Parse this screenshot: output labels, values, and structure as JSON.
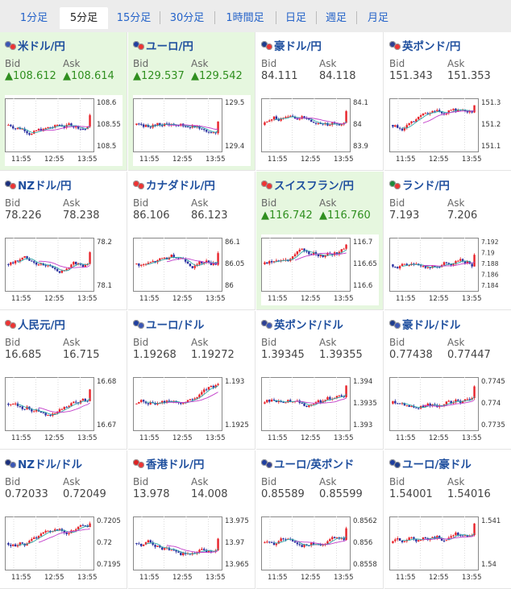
{
  "tabs": [
    "1分足",
    "5分足",
    "15分足",
    "30分足",
    "1時間足",
    "日足",
    "週足",
    "月足"
  ],
  "active_tab": 1,
  "labels": {
    "bid": "Bid",
    "ask": "Ask"
  },
  "colors": {
    "up": "#e8232a",
    "down": "#2a2fa0",
    "ma_short": "#2da8a8",
    "ma_long": "#c23cc9",
    "highlight": "#e6f7df",
    "link": "#1f4f9e"
  },
  "time_labels": [
    "11:55",
    "12:55",
    "13:55"
  ],
  "pairs": [
    {
      "name": "米ドル/円",
      "flag": "us-jp-flag-icon",
      "bid": "▲108.612",
      "ask": "▲108.614",
      "up": true,
      "hl": true,
      "yticks": [
        "108.6",
        "108.55",
        "108.5"
      ]
    },
    {
      "name": "ユーロ/円",
      "flag": "eu-jp-flag-icon",
      "bid": "▲129.537",
      "ask": "▲129.542",
      "up": true,
      "hl": true,
      "yticks": [
        "129.5",
        "129.4"
      ]
    },
    {
      "name": "豪ドル/円",
      "flag": "au-jp-flag-icon",
      "bid": "84.111",
      "ask": "84.118",
      "up": false,
      "hl": false,
      "yticks": [
        "84.1",
        "84",
        "83.9"
      ]
    },
    {
      "name": "英ポンド/円",
      "flag": "gb-jp-flag-icon",
      "bid": "151.343",
      "ask": "151.353",
      "up": false,
      "hl": false,
      "yticks": [
        "151.3",
        "151.2",
        "151.1"
      ]
    },
    {
      "name": "NZドル/円",
      "flag": "nz-jp-flag-icon",
      "bid": "78.226",
      "ask": "78.238",
      "up": false,
      "hl": false,
      "yticks": [
        "78.2",
        "78.1"
      ]
    },
    {
      "name": "カナダドル/円",
      "flag": "ca-jp-flag-icon",
      "bid": "86.106",
      "ask": "86.123",
      "up": false,
      "hl": false,
      "yticks": [
        "86.1",
        "86.05",
        "86"
      ]
    },
    {
      "name": "スイスフラン/円",
      "flag": "ch-jp-flag-icon",
      "bid": "▲116.742",
      "ask": "▲116.760",
      "up": true,
      "hl": true,
      "yticks": [
        "116.7",
        "116.65",
        "116.6"
      ]
    },
    {
      "name": "ランド/円",
      "flag": "za-jp-flag-icon",
      "bid": "7.193",
      "ask": "7.206",
      "up": false,
      "hl": false,
      "yticks": [
        "7.192",
        "7.19",
        "7.188",
        "7.186",
        "7.184"
      ]
    },
    {
      "name": "人民元/円",
      "flag": "cn-jp-flag-icon",
      "bid": "16.685",
      "ask": "16.715",
      "up": false,
      "hl": false,
      "yticks": [
        "16.68",
        "16.67"
      ]
    },
    {
      "name": "ユーロ/ドル",
      "flag": "eu-us-flag-icon",
      "bid": "1.19268",
      "ask": "1.19272",
      "up": false,
      "hl": false,
      "yticks": [
        "1.193",
        "1.1925"
      ]
    },
    {
      "name": "英ポンド/ドル",
      "flag": "gb-us-flag-icon",
      "bid": "1.39345",
      "ask": "1.39355",
      "up": false,
      "hl": false,
      "yticks": [
        "1.394",
        "1.3935",
        "1.393"
      ]
    },
    {
      "name": "豪ドル/ドル",
      "flag": "au-us-flag-icon",
      "bid": "0.77438",
      "ask": "0.77447",
      "up": false,
      "hl": false,
      "yticks": [
        "0.7745",
        "0.774",
        "0.7735"
      ]
    },
    {
      "name": "NZドル/ドル",
      "flag": "nz-us-flag-icon",
      "bid": "0.72033",
      "ask": "0.72049",
      "up": false,
      "hl": false,
      "yticks": [
        "0.7205",
        "0.72",
        "0.7195"
      ]
    },
    {
      "name": "香港ドル/円",
      "flag": "hk-jp-flag-icon",
      "bid": "13.978",
      "ask": "14.008",
      "up": false,
      "hl": false,
      "yticks": [
        "13.975",
        "13.97",
        "13.965"
      ]
    },
    {
      "name": "ユーロ/英ポンド",
      "flag": "eu-gb-flag-icon",
      "bid": "0.85589",
      "ask": "0.85599",
      "up": false,
      "hl": false,
      "yticks": [
        "0.8562",
        "0.856",
        "0.8558"
      ]
    },
    {
      "name": "ユーロ/豪ドル",
      "flag": "eu-au-flag-icon",
      "bid": "1.54001",
      "ask": "1.54016",
      "up": false,
      "hl": false,
      "yticks": [
        "1.541",
        "1.54"
      ]
    }
  ]
}
